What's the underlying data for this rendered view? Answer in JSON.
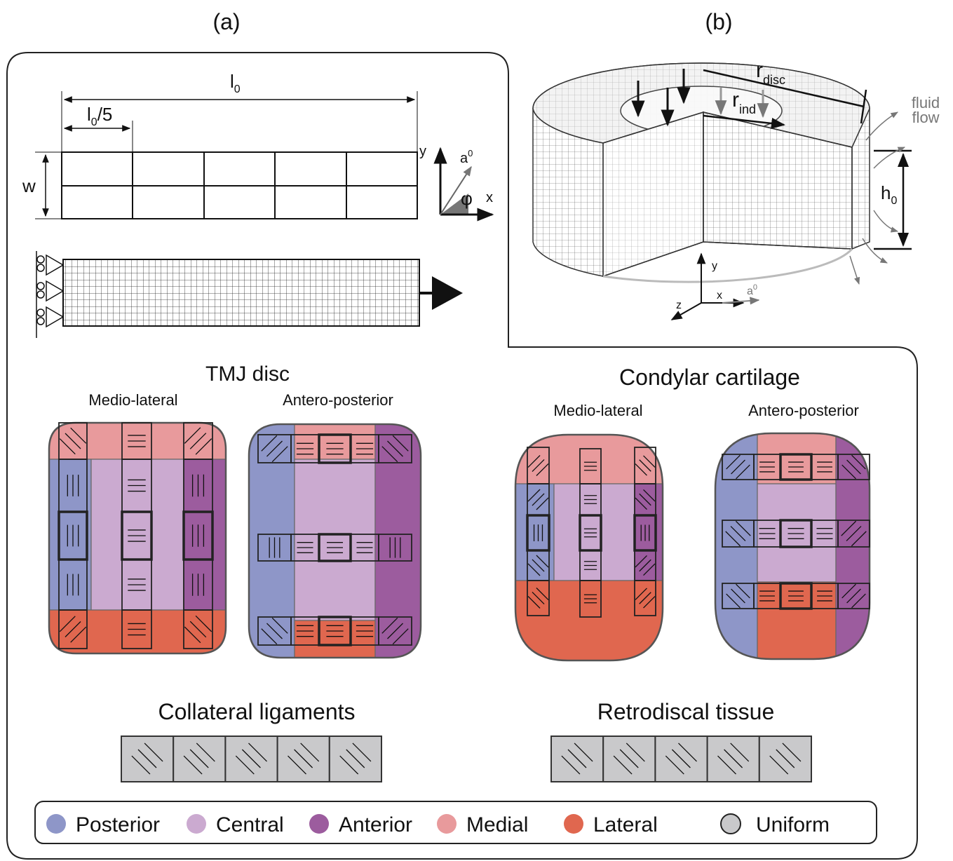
{
  "panel_a": {
    "label": "(a)",
    "length": {
      "base": "l",
      "sub": "0"
    },
    "fifth": {
      "base": "l",
      "sub": "0",
      "tail": "/5"
    },
    "width": "w",
    "axis_y": "y",
    "axis_x": "x",
    "fiber": {
      "base": "a",
      "sup": "0"
    },
    "angle": "φ"
  },
  "panel_b": {
    "label": "(b)",
    "disc_radius": {
      "base": "r",
      "sub": "disc"
    },
    "indenter_radius": {
      "base": "r",
      "sub": "ind"
    },
    "fluid_flow": [
      "fluid",
      "flow"
    ],
    "height": {
      "base": "h",
      "sub": "0"
    },
    "axis_y": "y",
    "axis_x": "x",
    "axis_z": "z",
    "fiber": {
      "base": "a",
      "sup": "0"
    }
  },
  "tmj_disc": {
    "title": "TMJ disc",
    "views": [
      "Medio-lateral",
      "Antero-posterior"
    ]
  },
  "condylar_cartilage": {
    "title": "Condylar cartilage",
    "views": [
      "Medio-lateral",
      "Antero-posterior"
    ]
  },
  "collateral_ligaments": {
    "title": "Collateral ligaments"
  },
  "retrodiscal_tissue": {
    "title": "Retrodiscal tissue"
  },
  "legend": [
    {
      "label": "Posterior",
      "color": "#8e96c8"
    },
    {
      "label": "Central",
      "color": "#cbaad0"
    },
    {
      "label": "Anterior",
      "color": "#9c5c9e"
    },
    {
      "label": "Medial",
      "color": "#e89a9c"
    },
    {
      "label": "Lateral",
      "color": "#e0674f"
    },
    {
      "label": "Uniform",
      "color": "#c9c9cb"
    }
  ]
}
